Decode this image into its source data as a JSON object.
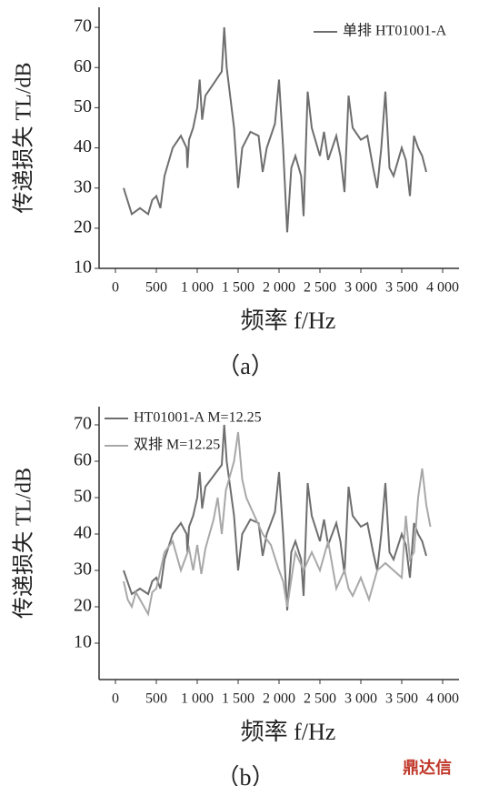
{
  "chart_data": [
    {
      "type": "line",
      "ylabel": "传递损失 TL/dB",
      "xlabel": "频率 f/Hz",
      "caption": "（a）",
      "xlim": [
        -200,
        4200
      ],
      "ylim": [
        10,
        75
      ],
      "xticks": [
        0,
        500,
        {
          "value": 1000,
          "label": "1 000"
        },
        {
          "value": 1500,
          "label": "1 500"
        },
        {
          "value": 2000,
          "label": "2 000"
        },
        {
          "value": 2500,
          "label": "2 500"
        },
        {
          "value": 3000,
          "label": "3 000"
        },
        {
          "value": 3500,
          "label": "3 500"
        },
        {
          "value": 4000,
          "label": "4 000"
        }
      ],
      "yticks": [
        10,
        20,
        30,
        40,
        50,
        60,
        70
      ],
      "legend": "upper right",
      "series": [
        {
          "name": "单排 HT01001-A",
          "color": "#6e6e6e",
          "x": [
            100,
            200,
            300,
            400,
            450,
            500,
            550,
            600,
            700,
            800,
            870,
            880,
            900,
            950,
            1000,
            1030,
            1060,
            1100,
            1200,
            1300,
            1330,
            1360,
            1450,
            1500,
            1550,
            1650,
            1750,
            1800,
            1850,
            1950,
            2000,
            2050,
            2100,
            2150,
            2200,
            2270,
            2300,
            2350,
            2400,
            2500,
            2550,
            2600,
            2700,
            2750,
            2800,
            2850,
            2900,
            3000,
            3080,
            3150,
            3200,
            3250,
            3300,
            3350,
            3400,
            3500,
            3550,
            3600,
            3650,
            3700,
            3750,
            3800
          ],
          "values": [
            30,
            23.5,
            25,
            23.5,
            27,
            28,
            25,
            33,
            40,
            43,
            40,
            35,
            42,
            45,
            50,
            57,
            47,
            53,
            56,
            59,
            70,
            60,
            45,
            30,
            40,
            44,
            43,
            34,
            40,
            46,
            57,
            40,
            19,
            35,
            38,
            33,
            23,
            54,
            45,
            38,
            44,
            37,
            43,
            38,
            29,
            53,
            45,
            42,
            43,
            35,
            30,
            40,
            54,
            35,
            33,
            40,
            37,
            28,
            43,
            40,
            38,
            34
          ]
        }
      ]
    },
    {
      "type": "line",
      "ylabel": "传递损失 TL/dB",
      "xlabel": "频率 f/Hz",
      "caption": "（b）",
      "xlim": [
        -200,
        4200
      ],
      "ylim": [
        0,
        75
      ],
      "xticks": [
        0,
        500,
        {
          "value": 1000,
          "label": "1 000"
        },
        {
          "value": 1500,
          "label": "1 500"
        },
        {
          "value": 2000,
          "label": "2 000"
        },
        {
          "value": 2500,
          "label": "2 500"
        },
        {
          "value": 3000,
          "label": "3 000"
        },
        {
          "value": 3500,
          "label": "3 500"
        },
        {
          "value": 4000,
          "label": "4 000"
        }
      ],
      "yticks": [
        10,
        20,
        30,
        40,
        50,
        60,
        70
      ],
      "legend": "upper left",
      "series": [
        {
          "name": "HT01001-A M=12.25",
          "color": "#6e6e6e",
          "x": [
            100,
            200,
            300,
            400,
            450,
            500,
            550,
            600,
            700,
            800,
            870,
            880,
            900,
            950,
            1000,
            1030,
            1060,
            1100,
            1200,
            1300,
            1330,
            1360,
            1450,
            1500,
            1550,
            1650,
            1750,
            1800,
            1850,
            1950,
            2000,
            2050,
            2100,
            2150,
            2200,
            2270,
            2300,
            2350,
            2400,
            2500,
            2550,
            2600,
            2700,
            2750,
            2800,
            2850,
            2900,
            3000,
            3080,
            3150,
            3200,
            3250,
            3300,
            3350,
            3400,
            3500,
            3550,
            3600,
            3650,
            3700,
            3750,
            3800
          ],
          "values": [
            30,
            23.5,
            25,
            23.5,
            27,
            28,
            25,
            33,
            40,
            43,
            40,
            35,
            42,
            45,
            50,
            57,
            47,
            53,
            56,
            59,
            70,
            60,
            45,
            30,
            40,
            44,
            43,
            34,
            40,
            46,
            57,
            40,
            19,
            35,
            38,
            33,
            23,
            54,
            45,
            38,
            44,
            37,
            43,
            38,
            29,
            53,
            45,
            42,
            43,
            35,
            30,
            40,
            54,
            35,
            33,
            40,
            37,
            28,
            43,
            40,
            38,
            34
          ]
        },
        {
          "name": "双排 M=12.25",
          "color": "#a8a8a8",
          "x": [
            100,
            150,
            200,
            250,
            300,
            400,
            450,
            500,
            550,
            600,
            700,
            800,
            900,
            950,
            1000,
            1050,
            1100,
            1200,
            1250,
            1300,
            1350,
            1450,
            1500,
            1550,
            1600,
            1700,
            1800,
            1900,
            2000,
            2050,
            2100,
            2200,
            2300,
            2400,
            2500,
            2600,
            2700,
            2800,
            2850,
            2900,
            3000,
            3100,
            3200,
            3300,
            3400,
            3500,
            3550,
            3600,
            3650,
            3700,
            3750,
            3800,
            3850
          ],
          "values": [
            27,
            22,
            20,
            24,
            22,
            18,
            24,
            25,
            30,
            35,
            38,
            30,
            36,
            30,
            37,
            29,
            36,
            44,
            50,
            40,
            52,
            60,
            68,
            55,
            50,
            45,
            40,
            37,
            30,
            27,
            20,
            35,
            30,
            35,
            30,
            38,
            25,
            30,
            25,
            23,
            28,
            22,
            30,
            32,
            30,
            28,
            45,
            33,
            35,
            50,
            58,
            48,
            42
          ]
        }
      ]
    }
  ],
  "watermark": "鼎达信"
}
